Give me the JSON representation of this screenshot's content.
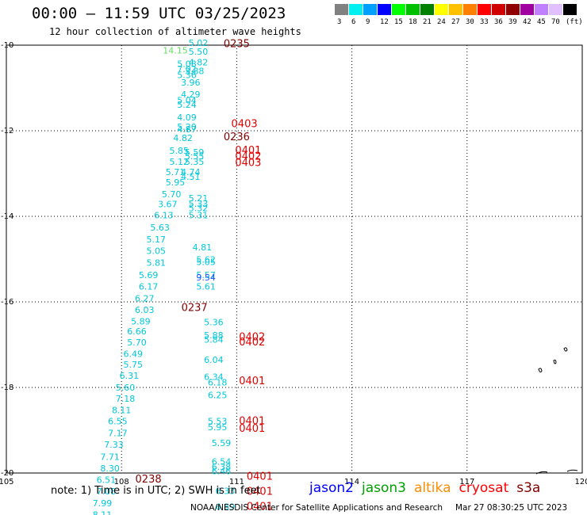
{
  "title": "00:00 – 11:59 UTC 03/25/2023",
  "subtitle": "12 hour collection of altimeter wave heights",
  "colorbar": {
    "labels": [
      "3",
      "6",
      "9",
      "12",
      "15",
      "18",
      "21",
      "24",
      "27",
      "30",
      "33",
      "36",
      "39",
      "42",
      "45",
      "70",
      "(ft)"
    ],
    "colors": [
      "#808080",
      "#00f0f0",
      "#00a0ff",
      "#0000ff",
      "#00ff00",
      "#00c000",
      "#008000",
      "#ffff00",
      "#ffc000",
      "#ff8000",
      "#ff0000",
      "#d00000",
      "#900000",
      "#a000a0",
      "#c080ff",
      "#e0c0ff",
      "#000000"
    ]
  },
  "note": "note: 1) Time is in UTC; 2) SWH is in feet",
  "legend": [
    {
      "name": "jason2",
      "color": "#0000ff"
    },
    {
      "name": "jason3",
      "color": "#00a000"
    },
    {
      "name": "altika",
      "color": "#ff8c00"
    },
    {
      "name": "cryosat",
      "color": "#ff0000"
    },
    {
      "name": "s3a",
      "color": "#800000"
    }
  ],
  "credit": "NOAA/NESDIS Center for Satellite Applications and Research",
  "timestamp": "Mar 27 08:30:25 UTC 2023",
  "chart_data": {
    "type": "scatter",
    "xlim": [
      105,
      120
    ],
    "ylim": [
      -20,
      -10
    ],
    "x_ticks": [
      105,
      108,
      111,
      114,
      117,
      120
    ],
    "y_ticks": [
      -10,
      -12,
      -14,
      -16,
      -18,
      -20
    ],
    "x_tick_labels": [
      "105",
      "108",
      "111",
      "114",
      "117",
      "120"
    ],
    "y_tick_labels": [
      "-10",
      "-12",
      "-14",
      "-16",
      "-18",
      "-20"
    ],
    "grid": true,
    "wave_heights": [
      {
        "x": 110.0,
        "y": -10.02,
        "label": "5.02",
        "color": "#00c8d8"
      },
      {
        "x": 110.0,
        "y": -10.22,
        "label": "5.50",
        "color": "#00c8d8"
      },
      {
        "x": 109.4,
        "y": -10.19,
        "label": "14.15",
        "color": "#66dd66"
      },
      {
        "x": 110.0,
        "y": -10.47,
        "label": "4.82",
        "color": "#00c8d8"
      },
      {
        "x": 109.7,
        "y": -10.51,
        "label": "5.08",
        "color": "#00c8d8"
      },
      {
        "x": 109.7,
        "y": -10.63,
        "label": "7.02",
        "color": "#00c8d8"
      },
      {
        "x": 109.9,
        "y": -10.68,
        "label": "3.88",
        "color": "#00c8d8"
      },
      {
        "x": 109.7,
        "y": -10.77,
        "label": "5.36",
        "color": "#00c8d8"
      },
      {
        "x": 109.8,
        "y": -10.94,
        "label": "3.96",
        "color": "#00c8d8"
      },
      {
        "x": 109.8,
        "y": -11.22,
        "label": "4.29",
        "color": "#00c8d8"
      },
      {
        "x": 109.7,
        "y": -11.36,
        "label": "5.04",
        "color": "#00c8d8"
      },
      {
        "x": 109.7,
        "y": -11.46,
        "label": "5.24",
        "color": "#00c8d8"
      },
      {
        "x": 109.7,
        "y": -11.76,
        "label": "4.09",
        "color": "#00c8d8"
      },
      {
        "x": 109.7,
        "y": -11.98,
        "label": "5.20",
        "color": "#00c8d8"
      },
      {
        "x": 109.7,
        "y": -12.04,
        "label": "4.87",
        "color": "#00c8d8"
      },
      {
        "x": 109.6,
        "y": -12.24,
        "label": "4.82",
        "color": "#00c8d8"
      },
      {
        "x": 109.5,
        "y": -12.54,
        "label": "5.85",
        "color": "#00c8d8"
      },
      {
        "x": 109.9,
        "y": -12.57,
        "label": "5.59",
        "color": "#00c8d8"
      },
      {
        "x": 109.9,
        "y": -12.67,
        "label": "5.55",
        "color": "#00c8d8"
      },
      {
        "x": 109.5,
        "y": -12.8,
        "label": "5.12",
        "color": "#00c8d8"
      },
      {
        "x": 109.9,
        "y": -12.8,
        "label": "5.35",
        "color": "#00c8d8"
      },
      {
        "x": 109.4,
        "y": -13.04,
        "label": "5.71",
        "color": "#00c8d8"
      },
      {
        "x": 109.8,
        "y": -13.04,
        "label": "4.74",
        "color": "#00c8d8"
      },
      {
        "x": 109.8,
        "y": -13.15,
        "label": "4.51",
        "color": "#00c8d8"
      },
      {
        "x": 109.4,
        "y": -13.28,
        "label": "5.95",
        "color": "#00c8d8"
      },
      {
        "x": 109.3,
        "y": -13.56,
        "label": "5.70",
        "color": "#00c8d8"
      },
      {
        "x": 110.0,
        "y": -13.65,
        "label": "5.21",
        "color": "#00c8d8"
      },
      {
        "x": 109.2,
        "y": -13.79,
        "label": "3.67",
        "color": "#00c8d8"
      },
      {
        "x": 110.0,
        "y": -13.78,
        "label": "5.33",
        "color": "#00c8d8"
      },
      {
        "x": 110.0,
        "y": -13.88,
        "label": "5.32",
        "color": "#00c8d8"
      },
      {
        "x": 109.1,
        "y": -14.05,
        "label": "6.13",
        "color": "#00c8d8"
      },
      {
        "x": 110.0,
        "y": -14.05,
        "label": "5.31",
        "color": "#00c8d8"
      },
      {
        "x": 109.0,
        "y": -14.33,
        "label": "5.63",
        "color": "#00c8d8"
      },
      {
        "x": 108.9,
        "y": -14.61,
        "label": "5.17",
        "color": "#00c8d8"
      },
      {
        "x": 110.1,
        "y": -14.8,
        "label": "4.81",
        "color": "#00c8d8"
      },
      {
        "x": 108.9,
        "y": -14.88,
        "label": "5.05",
        "color": "#00c8d8"
      },
      {
        "x": 110.2,
        "y": -15.08,
        "label": "5.62",
        "color": "#00c8d8"
      },
      {
        "x": 110.2,
        "y": -15.14,
        "label": "5.05",
        "color": "#00c8d8"
      },
      {
        "x": 108.9,
        "y": -15.16,
        "label": "5.81",
        "color": "#00c8d8"
      },
      {
        "x": 110.2,
        "y": -15.44,
        "label": "5.57",
        "color": "#00c8d8"
      },
      {
        "x": 108.7,
        "y": -15.44,
        "label": "5.69",
        "color": "#00c8d8"
      },
      {
        "x": 110.2,
        "y": -15.5,
        "label": "9.54",
        "color": "#1e50ff"
      },
      {
        "x": 110.2,
        "y": -15.71,
        "label": "5.61",
        "color": "#00c8d8"
      },
      {
        "x": 108.7,
        "y": -15.71,
        "label": "6.17",
        "color": "#00c8d8"
      },
      {
        "x": 108.6,
        "y": -15.99,
        "label": "6.27",
        "color": "#00c8d8"
      },
      {
        "x": 108.6,
        "y": -16.26,
        "label": "6.03",
        "color": "#00c8d8"
      },
      {
        "x": 108.5,
        "y": -16.53,
        "label": "5.89",
        "color": "#00c8d8"
      },
      {
        "x": 110.4,
        "y": -16.55,
        "label": "5.36",
        "color": "#00c8d8"
      },
      {
        "x": 108.4,
        "y": -16.76,
        "label": "6.66",
        "color": "#00c8d8"
      },
      {
        "x": 110.4,
        "y": -16.85,
        "label": "5.88",
        "color": "#00c8d8"
      },
      {
        "x": 110.4,
        "y": -16.95,
        "label": "5.84",
        "color": "#00c8d8"
      },
      {
        "x": 108.4,
        "y": -17.02,
        "label": "5.70",
        "color": "#00c8d8"
      },
      {
        "x": 108.3,
        "y": -17.29,
        "label": "6.49",
        "color": "#00c8d8"
      },
      {
        "x": 110.4,
        "y": -17.43,
        "label": "6.04",
        "color": "#00c8d8"
      },
      {
        "x": 108.3,
        "y": -17.54,
        "label": "5.75",
        "color": "#00c8d8"
      },
      {
        "x": 108.2,
        "y": -17.8,
        "label": "6.31",
        "color": "#00c8d8"
      },
      {
        "x": 110.4,
        "y": -17.82,
        "label": "6.34",
        "color": "#00c8d8"
      },
      {
        "x": 110.5,
        "y": -17.95,
        "label": "6.18",
        "color": "#00c8d8"
      },
      {
        "x": 108.1,
        "y": -18.07,
        "label": "5.60",
        "color": "#00c8d8"
      },
      {
        "x": 110.5,
        "y": -18.25,
        "label": "6.25",
        "color": "#00c8d8"
      },
      {
        "x": 108.1,
        "y": -18.33,
        "label": "7.18",
        "color": "#00c8d8"
      },
      {
        "x": 108.0,
        "y": -18.6,
        "label": "8.11",
        "color": "#00c8d8"
      },
      {
        "x": 107.9,
        "y": -18.86,
        "label": "6.55",
        "color": "#00c8d8"
      },
      {
        "x": 110.5,
        "y": -18.86,
        "label": "5.53",
        "color": "#00c8d8"
      },
      {
        "x": 110.5,
        "y": -19.0,
        "label": "5.95",
        "color": "#00c8d8"
      },
      {
        "x": 107.9,
        "y": -19.14,
        "label": "7.17",
        "color": "#00c8d8"
      },
      {
        "x": 110.6,
        "y": -19.37,
        "label": "5.59",
        "color": "#00c8d8"
      },
      {
        "x": 107.8,
        "y": -19.41,
        "label": "7.33",
        "color": "#00c8d8"
      },
      {
        "x": 107.7,
        "y": -19.69,
        "label": "7.71",
        "color": "#00c8d8"
      },
      {
        "x": 110.6,
        "y": -19.81,
        "label": "6.54",
        "color": "#00c8d8"
      },
      {
        "x": 110.6,
        "y": -19.93,
        "label": "6.38",
        "color": "#00c8d8"
      },
      {
        "x": 107.7,
        "y": -19.96,
        "label": "8.30",
        "color": "#00c8d8"
      },
      {
        "x": 110.6,
        "y": -20.03,
        "label": "6.46",
        "color": "#00c8d8"
      },
      {
        "x": 107.6,
        "y": -20.23,
        "label": "6.51",
        "color": "#00c8d8"
      },
      {
        "x": 110.7,
        "y": -20.49,
        "label": "6.33",
        "color": "#00c8d8"
      },
      {
        "x": 107.6,
        "y": -20.5,
        "label": "7.08",
        "color": "#00c8d8"
      },
      {
        "x": 107.5,
        "y": -20.78,
        "label": "7.99",
        "color": "#00c8d8"
      },
      {
        "x": 110.7,
        "y": -20.86,
        "label": "6.89",
        "color": "#00c8d8"
      },
      {
        "x": 107.5,
        "y": -21.05,
        "label": "8.11",
        "color": "#00c8d8"
      }
    ],
    "pass_times": [
      {
        "x": 111.0,
        "y": -10.05,
        "label": "0235",
        "color": "#800000"
      },
      {
        "x": 111.2,
        "y": -11.92,
        "label": "0403",
        "color": "#e00000"
      },
      {
        "x": 111.0,
        "y": -12.22,
        "label": "0236",
        "color": "#800000"
      },
      {
        "x": 111.3,
        "y": -12.54,
        "label": "0401",
        "color": "#e00000"
      },
      {
        "x": 111.3,
        "y": -12.68,
        "label": "0402",
        "color": "#e00000"
      },
      {
        "x": 111.3,
        "y": -12.82,
        "label": "0403",
        "color": "#e00000"
      },
      {
        "x": 109.9,
        "y": -16.21,
        "label": "0237",
        "color": "#800000"
      },
      {
        "x": 111.4,
        "y": -16.9,
        "label": "0402",
        "color": "#e00000"
      },
      {
        "x": 111.4,
        "y": -17.02,
        "label": "0402",
        "color": "#e00000"
      },
      {
        "x": 111.4,
        "y": -17.93,
        "label": "0401",
        "color": "#e00000"
      },
      {
        "x": 111.4,
        "y": -18.86,
        "label": "0401",
        "color": "#e00000"
      },
      {
        "x": 111.4,
        "y": -19.04,
        "label": "0401",
        "color": "#e00000"
      },
      {
        "x": 111.6,
        "y": -20.16,
        "label": "0401",
        "color": "#e00000"
      },
      {
        "x": 108.7,
        "y": -20.22,
        "label": "0238",
        "color": "#800000"
      },
      {
        "x": 111.6,
        "y": -20.51,
        "label": "0401",
        "color": "#e00000"
      },
      {
        "x": 111.6,
        "y": -20.86,
        "label": "0401",
        "color": "#e00000"
      }
    ]
  }
}
